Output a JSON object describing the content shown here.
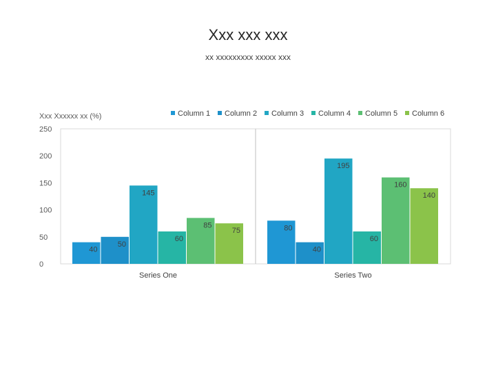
{
  "slide": {
    "title": "Xxx xxx xxx",
    "subtitle": "xx xxxxxxxxx xxxxx xxx"
  },
  "chart_data": {
    "type": "bar",
    "title": "",
    "ylabel": "Xxx Xxxxxx xx (%)",
    "xlabel": "",
    "categories": [
      "Series One",
      "Series Two"
    ],
    "ylim": [
      0,
      250
    ],
    "yticks": [
      0,
      50,
      100,
      150,
      200,
      250
    ],
    "grid": {
      "horizontal": false,
      "vertical_separator": true
    },
    "legend_position": "top-right",
    "data_labels": true,
    "series": [
      {
        "name": "Column 1",
        "color": "#1f97d4",
        "values": [
          40,
          80
        ]
      },
      {
        "name": "Column 2",
        "color": "#1e90c9",
        "values": [
          50,
          40
        ]
      },
      {
        "name": "Column 3",
        "color": "#21a6c4",
        "values": [
          145,
          195
        ]
      },
      {
        "name": "Column 4",
        "color": "#26b5a5",
        "values": [
          60,
          60
        ]
      },
      {
        "name": "Column 5",
        "color": "#5cbf73",
        "values": [
          85,
          160
        ]
      },
      {
        "name": "Column 6",
        "color": "#8bc34a",
        "values": [
          75,
          140
        ]
      }
    ]
  }
}
